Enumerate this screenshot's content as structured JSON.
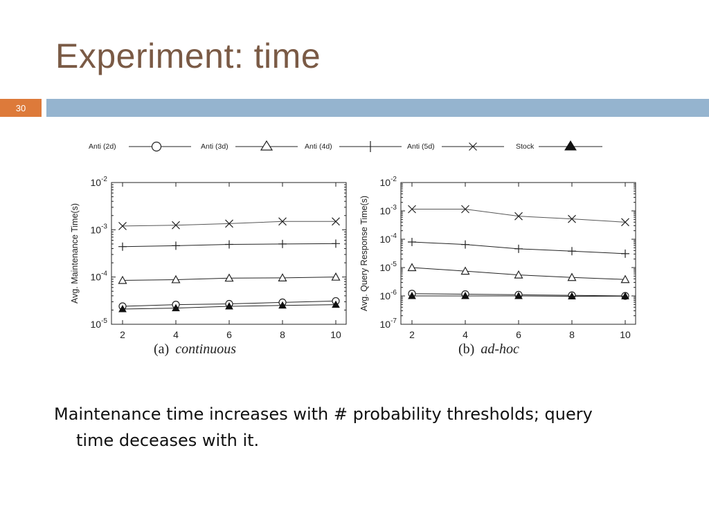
{
  "slide": {
    "title": "Experiment: time",
    "page_number": "30",
    "caption_line1": "Maintenance time increases with # probability thresholds; query",
    "caption_line2": "time deceases with it.",
    "colors": {
      "title": "#7a5a45",
      "badge": "#dd7a3a",
      "bar": "#95b4cf"
    }
  },
  "legend": [
    {
      "name": "Anti (2d)",
      "marker": "circle"
    },
    {
      "name": "Anti (3d)",
      "marker": "triangle"
    },
    {
      "name": "Anti (4d)",
      "marker": "plus"
    },
    {
      "name": "Anti (5d)",
      "marker": "cross"
    },
    {
      "name": "Stock",
      "marker": "filled-triangle"
    }
  ],
  "chart_data": [
    {
      "type": "line",
      "caption_label": "(a)",
      "caption_text": "continuous",
      "ylabel": "Avg. Maintenance Time(s)",
      "yscale": "log",
      "ylim_exp": [
        -5,
        -2
      ],
      "x": [
        2,
        4,
        6,
        8,
        10
      ],
      "xticks": [
        "2",
        "4",
        "6",
        "8",
        "10"
      ],
      "series": [
        {
          "name": "Anti (2d)",
          "marker": "circle",
          "values": [
            2.4e-05,
            2.6e-05,
            2.7e-05,
            2.9e-05,
            3.1e-05
          ]
        },
        {
          "name": "Anti (3d)",
          "marker": "triangle",
          "values": [
            8.5e-05,
            8.8e-05,
            9.5e-05,
            9.6e-05,
            0.0001
          ]
        },
        {
          "name": "Anti (4d)",
          "marker": "plus",
          "values": [
            0.00044,
            0.00046,
            0.00049,
            0.0005,
            0.00051
          ]
        },
        {
          "name": "Anti (5d)",
          "marker": "cross",
          "values": [
            0.0012,
            0.00125,
            0.00135,
            0.0015,
            0.0015
          ]
        },
        {
          "name": "Stock",
          "marker": "filled-triangle",
          "values": [
            2.1e-05,
            2.2e-05,
            2.4e-05,
            2.5e-05,
            2.6e-05
          ]
        }
      ]
    },
    {
      "type": "line",
      "caption_label": "(b)",
      "caption_text": "ad-hoc",
      "ylabel": "Avg. Query Response Time(s)",
      "yscale": "log",
      "ylim_exp": [
        -7,
        -2
      ],
      "x": [
        2,
        4,
        6,
        8,
        10
      ],
      "xticks": [
        "2",
        "4",
        "6",
        "8",
        "10"
      ],
      "series": [
        {
          "name": "Anti (2d)",
          "marker": "circle",
          "values": [
            1.2e-06,
            1.15e-06,
            1.1e-06,
            1.05e-06,
            1e-06
          ]
        },
        {
          "name": "Anti (3d)",
          "marker": "triangle",
          "values": [
            1e-05,
            7.5e-06,
            5.5e-06,
            4.5e-06,
            3.8e-06
          ]
        },
        {
          "name": "Anti (4d)",
          "marker": "plus",
          "values": [
            8e-05,
            6.5e-05,
            4.6e-05,
            3.8e-05,
            3.1e-05
          ]
        },
        {
          "name": "Anti (5d)",
          "marker": "cross",
          "values": [
            0.00115,
            0.00115,
            0.00065,
            0.00052,
            0.0004
          ]
        },
        {
          "name": "Stock",
          "marker": "filled-triangle",
          "values": [
            1e-06,
            1e-06,
            1e-06,
            9.7e-07,
            9.8e-07
          ]
        }
      ]
    }
  ]
}
